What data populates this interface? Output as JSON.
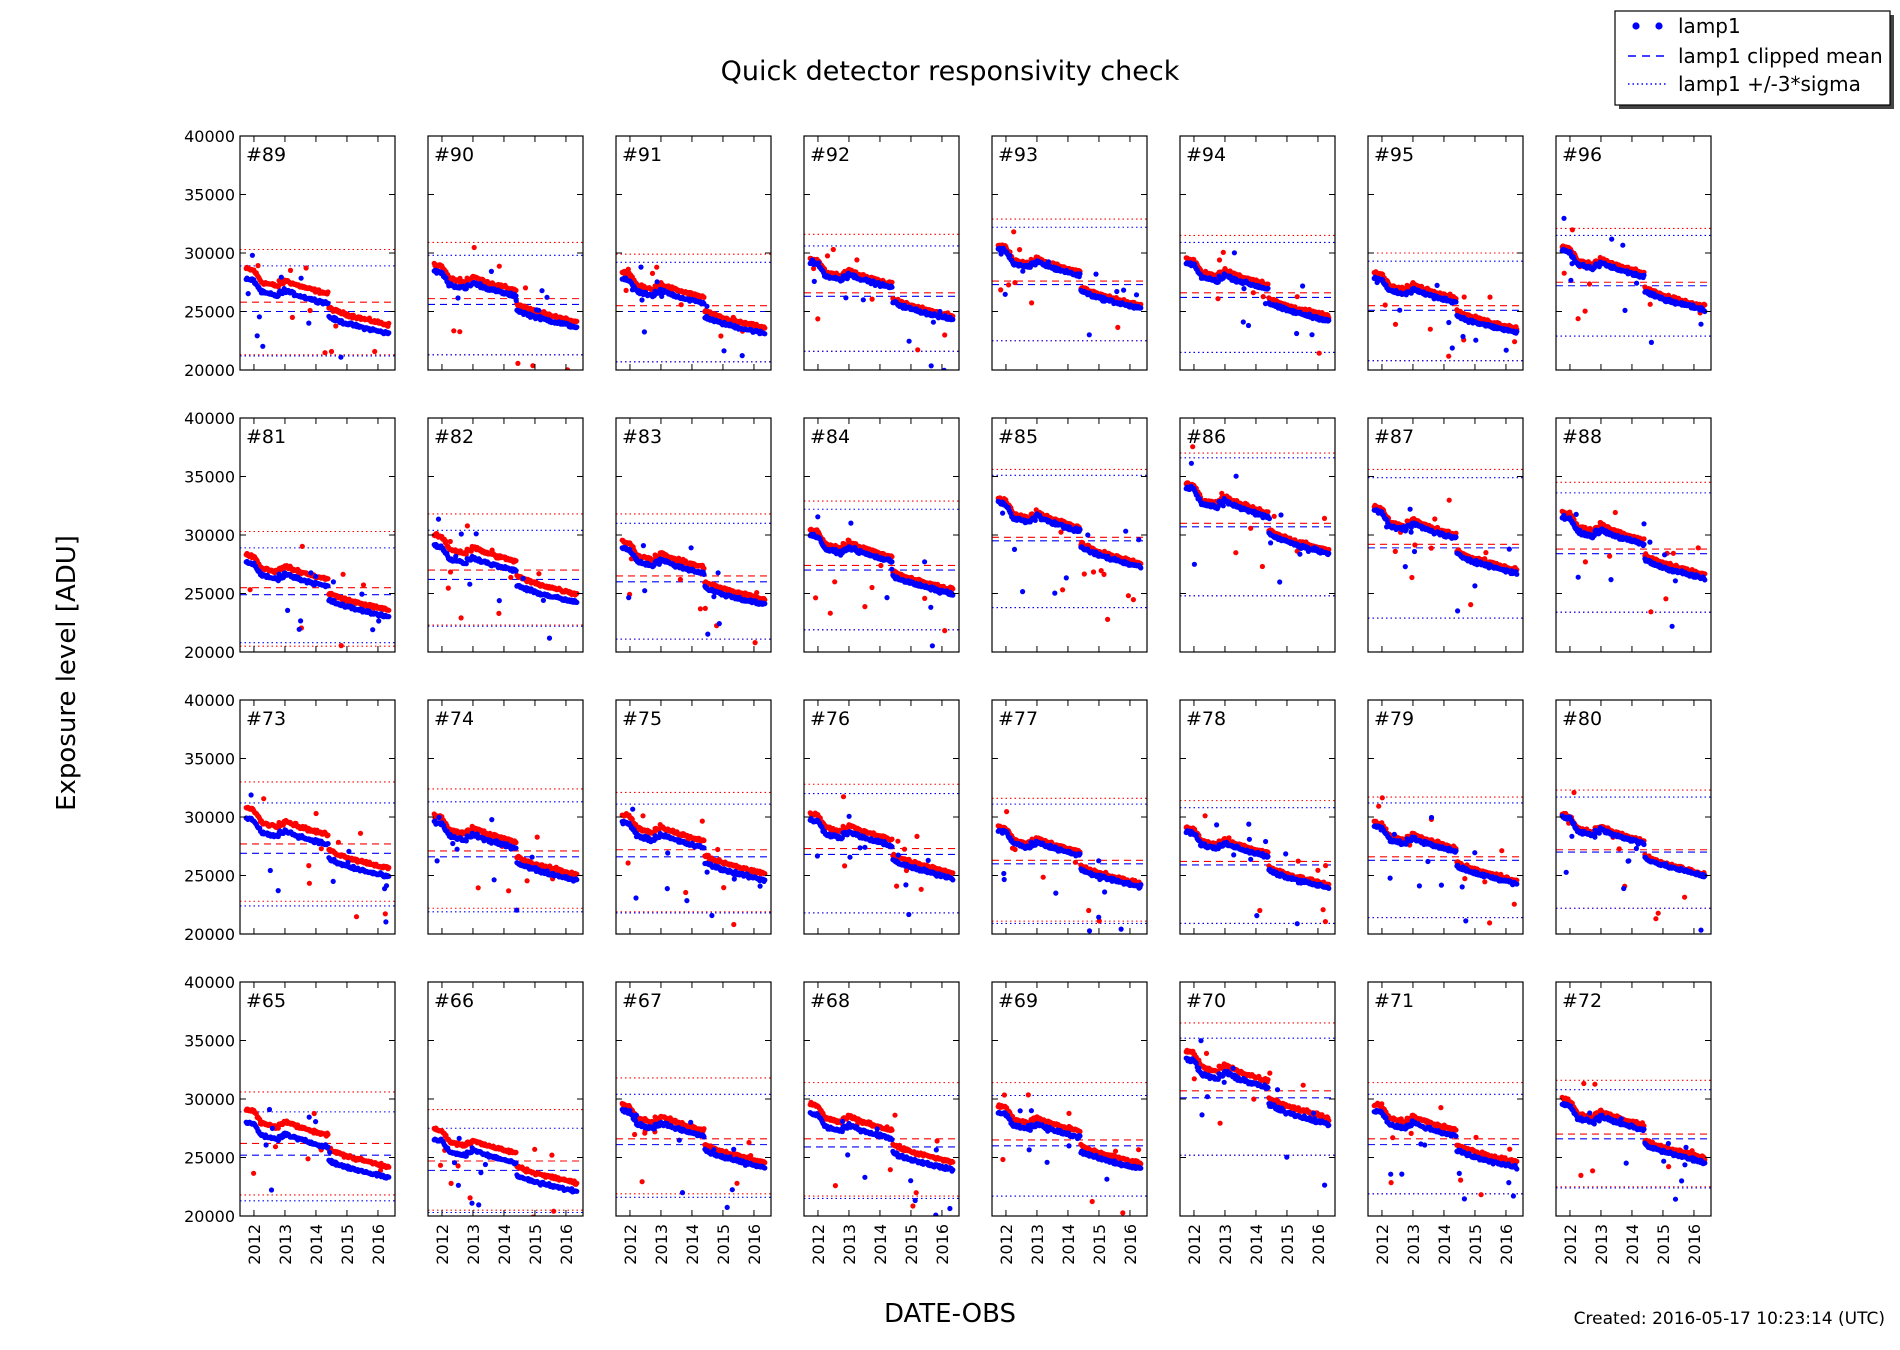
{
  "chart_data": {
    "type": "scatter",
    "title": "Quick detector responsivity check",
    "xlabel": "DATE-OBS",
    "ylabel": "Exposure level [ADU]",
    "footer": "Created: 2016-05-17 10:23:14 (UTC)",
    "ylim": [
      20000,
      40000
    ],
    "xlim": [
      2011.55,
      2016.55
    ],
    "y_ticks": [
      20000,
      25000,
      30000,
      35000,
      40000
    ],
    "y_tick_labels": [
      "20000",
      "25000",
      "30000",
      "35000",
      "40000"
    ],
    "x_ticks": [
      2012,
      2013,
      2014,
      2015,
      2016
    ],
    "x_tick_labels": [
      "2012",
      "2013",
      "2014",
      "2015",
      "2016"
    ],
    "grid": false,
    "legend": {
      "placement": "top-right",
      "entries": [
        "lamp1",
        "lamp1 clipped mean",
        "lamp1 +/-3*sigma"
      ]
    },
    "colors": {
      "lamp1": "#0000ff",
      "second_series": "#ff0000"
    },
    "layout": {
      "rows": 4,
      "cols": 8
    },
    "panels": [
      {
        "label": "#89",
        "blue_level": 25000,
        "red_level": 25800,
        "blue_sigma": [
          21200,
          28900
        ],
        "red_sigma": [
          21300,
          30300
        ]
      },
      {
        "label": "#90",
        "blue_level": 25600,
        "red_level": 26100,
        "blue_sigma": [
          21300,
          29800
        ],
        "red_sigma": [
          21300,
          30900
        ]
      },
      {
        "label": "#91",
        "blue_level": 25000,
        "red_level": 25500,
        "blue_sigma": [
          20700,
          29200
        ],
        "red_sigma": [
          20700,
          29900
        ]
      },
      {
        "label": "#92",
        "blue_level": 26300,
        "red_level": 26600,
        "blue_sigma": [
          21600,
          30600
        ],
        "red_sigma": [
          21600,
          31600
        ]
      },
      {
        "label": "#93",
        "blue_level": 27300,
        "red_level": 27600,
        "blue_sigma": [
          22500,
          32200
        ],
        "red_sigma": [
          22500,
          32900
        ]
      },
      {
        "label": "#94",
        "blue_level": 26200,
        "red_level": 26600,
        "blue_sigma": [
          21500,
          30900
        ],
        "red_sigma": [
          21500,
          31500
        ]
      },
      {
        "label": "#95",
        "blue_level": 25100,
        "red_level": 25500,
        "blue_sigma": [
          20800,
          29300
        ],
        "red_sigma": [
          20800,
          30000
        ]
      },
      {
        "label": "#96",
        "blue_level": 27200,
        "red_level": 27500,
        "blue_sigma": [
          22900,
          31500
        ],
        "red_sigma": [
          22900,
          32100
        ]
      },
      {
        "label": "#81",
        "blue_level": 24900,
        "red_level": 25500,
        "blue_sigma": [
          20800,
          28900
        ],
        "red_sigma": [
          20500,
          30300
        ]
      },
      {
        "label": "#82",
        "blue_level": 26200,
        "red_level": 27000,
        "blue_sigma": [
          22200,
          30400
        ],
        "red_sigma": [
          22300,
          31800
        ]
      },
      {
        "label": "#83",
        "blue_level": 26000,
        "red_level": 26500,
        "blue_sigma": [
          21100,
          31000
        ],
        "red_sigma": [
          21100,
          31800
        ]
      },
      {
        "label": "#84",
        "blue_level": 27000,
        "red_level": 27400,
        "blue_sigma": [
          21900,
          32200
        ],
        "red_sigma": [
          21900,
          32900
        ]
      },
      {
        "label": "#85",
        "blue_level": 29500,
        "red_level": 29800,
        "blue_sigma": [
          23800,
          35100
        ],
        "red_sigma": [
          23800,
          35600
        ]
      },
      {
        "label": "#86",
        "blue_level": 30700,
        "red_level": 31000,
        "blue_sigma": [
          24800,
          36600
        ],
        "red_sigma": [
          24800,
          37000
        ]
      },
      {
        "label": "#87",
        "blue_level": 28900,
        "red_level": 29200,
        "blue_sigma": [
          22900,
          34900
        ],
        "red_sigma": [
          22900,
          35600
        ]
      },
      {
        "label": "#88",
        "blue_level": 28400,
        "red_level": 28800,
        "blue_sigma": [
          23400,
          33600
        ],
        "red_sigma": [
          23400,
          34500
        ]
      },
      {
        "label": "#73",
        "blue_level": 26900,
        "red_level": 27700,
        "blue_sigma": [
          22400,
          31200
        ],
        "red_sigma": [
          22800,
          33000
        ]
      },
      {
        "label": "#74",
        "blue_level": 26600,
        "red_level": 27100,
        "blue_sigma": [
          21900,
          31300
        ],
        "red_sigma": [
          22200,
          32400
        ]
      },
      {
        "label": "#75",
        "blue_level": 26600,
        "red_level": 27200,
        "blue_sigma": [
          21800,
          31100
        ],
        "red_sigma": [
          21900,
          32100
        ]
      },
      {
        "label": "#76",
        "blue_level": 26800,
        "red_level": 27300,
        "blue_sigma": [
          21800,
          32000
        ],
        "red_sigma": [
          21800,
          32800
        ]
      },
      {
        "label": "#77",
        "blue_level": 26000,
        "red_level": 26300,
        "blue_sigma": [
          20900,
          31100
        ],
        "red_sigma": [
          21100,
          31600
        ]
      },
      {
        "label": "#78",
        "blue_level": 25900,
        "red_level": 26200,
        "blue_sigma": [
          20900,
          30800
        ],
        "red_sigma": [
          20900,
          31400
        ]
      },
      {
        "label": "#79",
        "blue_level": 26300,
        "red_level": 26600,
        "blue_sigma": [
          21400,
          31200
        ],
        "red_sigma": [
          21400,
          31700
        ]
      },
      {
        "label": "#80",
        "blue_level": 27000,
        "red_level": 27200,
        "blue_sigma": [
          22200,
          31700
        ],
        "red_sigma": [
          22200,
          32300
        ]
      },
      {
        "label": "#65",
        "blue_level": 25200,
        "red_level": 26200,
        "blue_sigma": [
          21300,
          28900
        ],
        "red_sigma": [
          21800,
          30600
        ]
      },
      {
        "label": "#66",
        "blue_level": 23900,
        "red_level": 24700,
        "blue_sigma": [
          20300,
          27500
        ],
        "red_sigma": [
          20500,
          29100
        ]
      },
      {
        "label": "#67",
        "blue_level": 26100,
        "red_level": 26600,
        "blue_sigma": [
          21600,
          30400
        ],
        "red_sigma": [
          21900,
          31800
        ]
      },
      {
        "label": "#68",
        "blue_level": 25900,
        "red_level": 26600,
        "blue_sigma": [
          21500,
          30300
        ],
        "red_sigma": [
          21700,
          31400
        ]
      },
      {
        "label": "#69",
        "blue_level": 26000,
        "red_level": 26500,
        "blue_sigma": [
          21700,
          30300
        ],
        "red_sigma": [
          21700,
          31400
        ]
      },
      {
        "label": "#70",
        "blue_level": 30100,
        "red_level": 30700,
        "blue_sigma": [
          25200,
          35200
        ],
        "red_sigma": [
          25200,
          36500
        ]
      },
      {
        "label": "#71",
        "blue_level": 26100,
        "red_level": 26600,
        "blue_sigma": [
          21900,
          30400
        ],
        "red_sigma": [
          21900,
          31400
        ]
      },
      {
        "label": "#72",
        "blue_level": 26600,
        "red_level": 27000,
        "blue_sigma": [
          22400,
          30800
        ],
        "red_sigma": [
          22500,
          31600
        ]
      }
    ]
  }
}
